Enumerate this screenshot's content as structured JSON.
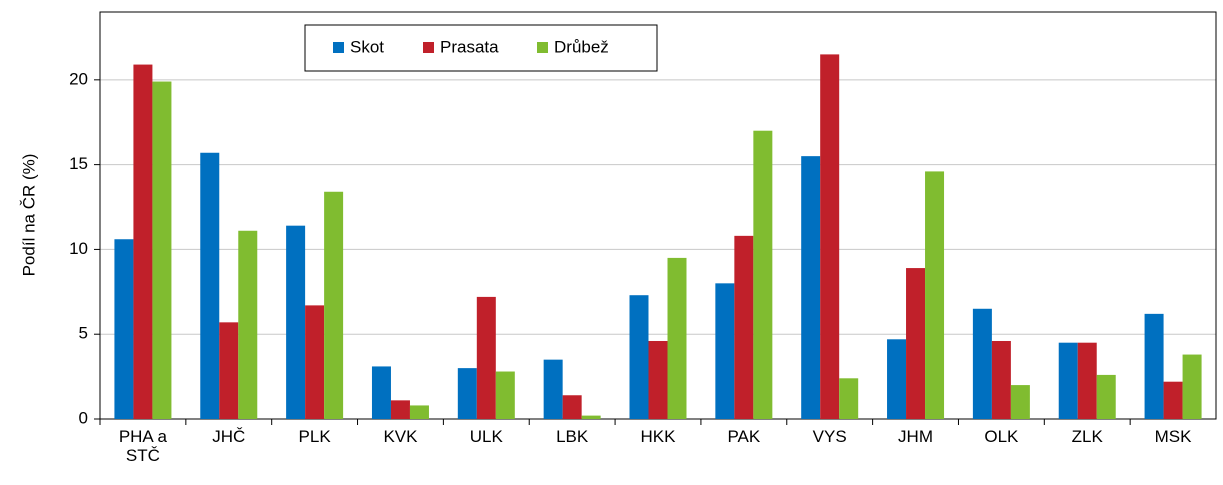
{
  "chart_data": {
    "type": "bar",
    "y_label": "Podíl na ČR (%)",
    "categories": [
      "PHA a STČ",
      "JHČ",
      "PLK",
      "KVK",
      "ULK",
      "LBK",
      "HKK",
      "PAK",
      "VYS",
      "JHM",
      "OLK",
      "ZLK",
      "MSK"
    ],
    "series": [
      {
        "name": "Skot",
        "color": "#0070c0",
        "values": [
          10.6,
          15.7,
          11.4,
          3.1,
          3.0,
          3.5,
          7.3,
          8.0,
          15.5,
          4.7,
          6.5,
          4.5,
          6.2
        ]
      },
      {
        "name": "Prasata",
        "color": "#c0202a",
        "values": [
          20.9,
          5.7,
          6.7,
          1.1,
          7.2,
          1.4,
          4.6,
          10.8,
          21.5,
          8.9,
          4.6,
          4.5,
          2.2
        ]
      },
      {
        "name": "Drůbež",
        "color": "#80bc30",
        "values": [
          19.9,
          11.1,
          13.4,
          0.8,
          2.8,
          0.2,
          9.5,
          17.0,
          2.4,
          14.6,
          2.0,
          2.6,
          3.8
        ]
      }
    ],
    "ylim": [
      0,
      24
    ],
    "yticks": [
      0,
      5,
      10,
      15,
      20
    ],
    "grid": true,
    "legend": "top"
  }
}
